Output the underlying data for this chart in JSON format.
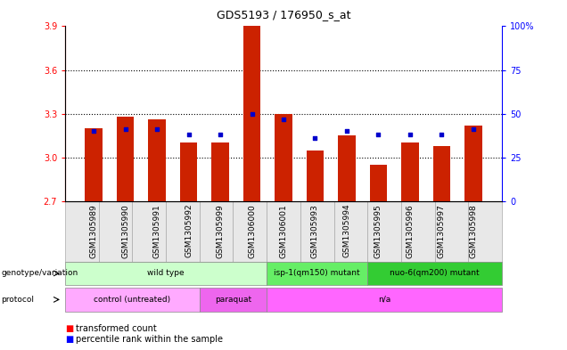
{
  "title": "GDS5193 / 176950_s_at",
  "samples": [
    "GSM1305989",
    "GSM1305990",
    "GSM1305991",
    "GSM1305992",
    "GSM1305999",
    "GSM1306000",
    "GSM1306001",
    "GSM1305993",
    "GSM1305994",
    "GSM1305995",
    "GSM1305996",
    "GSM1305997",
    "GSM1305998"
  ],
  "bar_values": [
    3.2,
    3.28,
    3.26,
    3.1,
    3.1,
    3.9,
    3.3,
    3.05,
    3.15,
    2.95,
    3.1,
    3.08,
    3.22
  ],
  "dot_values": [
    40,
    41,
    41,
    38,
    38,
    50,
    47,
    36,
    40,
    38,
    38,
    38,
    41
  ],
  "y_min": 2.7,
  "y_max": 3.9,
  "y_ticks": [
    2.7,
    3.0,
    3.3,
    3.6,
    3.9
  ],
  "y2_ticks": [
    0,
    25,
    50,
    75,
    100
  ],
  "bar_color": "#cc2200",
  "dot_color": "#0000cc",
  "plot_bg": "#ffffff",
  "genotype_groups": [
    {
      "label": "wild type",
      "start": 0,
      "end": 6,
      "color": "#ccffcc"
    },
    {
      "label": "isp-1(qm150) mutant",
      "start": 6,
      "end": 9,
      "color": "#66ee66"
    },
    {
      "label": "nuo-6(qm200) mutant",
      "start": 9,
      "end": 13,
      "color": "#33cc33"
    }
  ],
  "protocol_groups": [
    {
      "label": "control (untreated)",
      "start": 0,
      "end": 4,
      "color": "#ffaaff"
    },
    {
      "label": "paraquat",
      "start": 4,
      "end": 6,
      "color": "#ee66ee"
    },
    {
      "label": "n/a",
      "start": 6,
      "end": 13,
      "color": "#ff66ff"
    }
  ]
}
